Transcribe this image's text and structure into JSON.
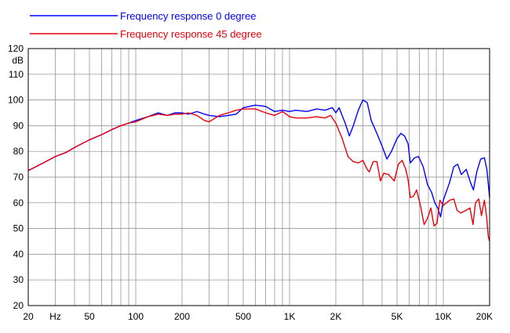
{
  "chart_data": {
    "type": "line",
    "ylabel": "dB",
    "x_scale": "log",
    "xlim": [
      20,
      20000
    ],
    "ylim": [
      20,
      120
    ],
    "grid": true,
    "legend_position": "top-left",
    "y_ticks": [
      20,
      30,
      40,
      50,
      60,
      70,
      80,
      90,
      100,
      110,
      120
    ],
    "x_tick_labels": [
      {
        "value": 20,
        "label": "20"
      },
      {
        "value": 30,
        "label": "Hz"
      },
      {
        "value": 50,
        "label": "50"
      },
      {
        "value": 100,
        "label": "100"
      },
      {
        "value": 200,
        "label": "200"
      },
      {
        "value": 500,
        "label": "500"
      },
      {
        "value": 1000,
        "label": "1K"
      },
      {
        "value": 2000,
        "label": "2K"
      },
      {
        "value": 5000,
        "label": "5K"
      },
      {
        "value": 10000,
        "label": "10K"
      },
      {
        "value": 20000,
        "label": "20K"
      }
    ],
    "series": [
      {
        "name": "Frequency response 0 degree",
        "color": "#0000ff",
        "points": [
          [
            20,
            72.5
          ],
          [
            25,
            75.5
          ],
          [
            30,
            78
          ],
          [
            35,
            79.5
          ],
          [
            40,
            81.5
          ],
          [
            50,
            84.5
          ],
          [
            60,
            86.5
          ],
          [
            70,
            88.5
          ],
          [
            80,
            90
          ],
          [
            90,
            91
          ],
          [
            100,
            92
          ],
          [
            120,
            93.5
          ],
          [
            140,
            95
          ],
          [
            160,
            94
          ],
          [
            180,
            95
          ],
          [
            200,
            95
          ],
          [
            220,
            94.5
          ],
          [
            250,
            95.5
          ],
          [
            280,
            94.5
          ],
          [
            300,
            94
          ],
          [
            350,
            93.5
          ],
          [
            400,
            94
          ],
          [
            450,
            94.5
          ],
          [
            500,
            97
          ],
          [
            600,
            98
          ],
          [
            700,
            97.5
          ],
          [
            800,
            95.5
          ],
          [
            900,
            96
          ],
          [
            1000,
            95.5
          ],
          [
            1100,
            96
          ],
          [
            1300,
            95.5
          ],
          [
            1500,
            96.5
          ],
          [
            1700,
            96
          ],
          [
            1900,
            97
          ],
          [
            2000,
            95
          ],
          [
            2100,
            97
          ],
          [
            2300,
            91
          ],
          [
            2450,
            86
          ],
          [
            2600,
            90
          ],
          [
            2800,
            96
          ],
          [
            3000,
            100
          ],
          [
            3200,
            99
          ],
          [
            3400,
            92
          ],
          [
            3700,
            87
          ],
          [
            4000,
            82
          ],
          [
            4300,
            77
          ],
          [
            4600,
            80
          ],
          [
            5000,
            85
          ],
          [
            5300,
            87
          ],
          [
            5600,
            86
          ],
          [
            5900,
            83
          ],
          [
            6100,
            75.5
          ],
          [
            6500,
            77.5
          ],
          [
            6900,
            78
          ],
          [
            7400,
            74
          ],
          [
            7900,
            67
          ],
          [
            8400,
            64
          ],
          [
            8800,
            60
          ],
          [
            9200,
            58
          ],
          [
            9600,
            54.5
          ],
          [
            10000,
            61
          ],
          [
            11000,
            68
          ],
          [
            11700,
            74
          ],
          [
            12400,
            75
          ],
          [
            13100,
            71
          ],
          [
            14100,
            73
          ],
          [
            15000,
            68
          ],
          [
            15700,
            65
          ],
          [
            16500,
            72
          ],
          [
            17500,
            77
          ],
          [
            18500,
            77.5
          ],
          [
            19200,
            73
          ],
          [
            20000,
            62
          ]
        ]
      },
      {
        "name": "Frequency response 45 degree",
        "color": "#e8000b",
        "points": [
          [
            20,
            72.5
          ],
          [
            25,
            75.5
          ],
          [
            30,
            78
          ],
          [
            35,
            79.5
          ],
          [
            40,
            81.5
          ],
          [
            50,
            84.5
          ],
          [
            60,
            86.5
          ],
          [
            70,
            88.5
          ],
          [
            80,
            90
          ],
          [
            90,
            91
          ],
          [
            100,
            91.5
          ],
          [
            120,
            93.5
          ],
          [
            140,
            94.5
          ],
          [
            160,
            94
          ],
          [
            180,
            94.5
          ],
          [
            200,
            94.5
          ],
          [
            220,
            95
          ],
          [
            250,
            94
          ],
          [
            280,
            92
          ],
          [
            300,
            91.5
          ],
          [
            350,
            94
          ],
          [
            400,
            95
          ],
          [
            450,
            96
          ],
          [
            500,
            96.5
          ],
          [
            600,
            96.5
          ],
          [
            700,
            95
          ],
          [
            800,
            94
          ],
          [
            900,
            95.5
          ],
          [
            1000,
            93.5
          ],
          [
            1100,
            93
          ],
          [
            1300,
            93
          ],
          [
            1500,
            93.5
          ],
          [
            1700,
            93
          ],
          [
            1850,
            94
          ],
          [
            2000,
            91
          ],
          [
            2200,
            85
          ],
          [
            2400,
            78
          ],
          [
            2600,
            76
          ],
          [
            2800,
            75.5
          ],
          [
            3000,
            76.5
          ],
          [
            3200,
            73
          ],
          [
            3300,
            72
          ],
          [
            3500,
            76
          ],
          [
            3700,
            76
          ],
          [
            3900,
            68.5
          ],
          [
            4100,
            71.5
          ],
          [
            4400,
            71
          ],
          [
            4800,
            68.5
          ],
          [
            5100,
            75
          ],
          [
            5400,
            76.5
          ],
          [
            5700,
            73
          ],
          [
            5900,
            69
          ],
          [
            6100,
            62
          ],
          [
            6400,
            62.5
          ],
          [
            6700,
            65
          ],
          [
            7100,
            59
          ],
          [
            7500,
            51.5
          ],
          [
            7900,
            54
          ],
          [
            8300,
            58
          ],
          [
            8700,
            51
          ],
          [
            9100,
            52
          ],
          [
            9500,
            61
          ],
          [
            10000,
            59
          ],
          [
            11000,
            61
          ],
          [
            11700,
            61.5
          ],
          [
            12300,
            57
          ],
          [
            13000,
            56
          ],
          [
            14000,
            57
          ],
          [
            14900,
            58
          ],
          [
            15600,
            51.5
          ],
          [
            16200,
            60
          ],
          [
            17000,
            61.5
          ],
          [
            17700,
            55
          ],
          [
            18500,
            61
          ],
          [
            19100,
            55
          ],
          [
            19600,
            47
          ],
          [
            20000,
            45
          ]
        ]
      }
    ]
  }
}
